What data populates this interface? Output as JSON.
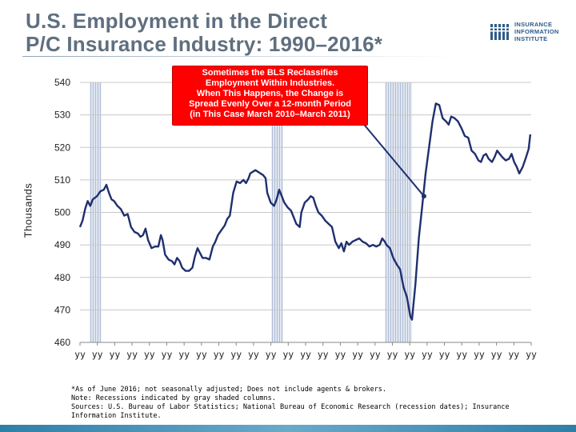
{
  "title_line1": "U.S. Employment in the Direct",
  "title_line2": "P/C Insurance Industry: 1990–2016*",
  "logo": {
    "line1": "INSURANCE",
    "line2": "INFORMATION",
    "line3": "INSTITUTE",
    "color": "#2f5b8a"
  },
  "callout": {
    "line1": "Sometimes the BLS Reclassifies",
    "line2": "Employment Within Industries.",
    "line3": "When This Happens, the Change is",
    "line4": "Spread Evenly Over a 12-month Period",
    "line5": "(in This Case March 2010–March 2011)",
    "color": "#ff0000"
  },
  "notes": {
    "line1": "*As of June 2016; not seasonally adjusted; Does not include agents & brokers.",
    "line2": "Note: Recessions indicated by gray shaded columns.",
    "line3": "Sources: U.S. Bureau of Labor Statistics; National Bureau of Economic Research (recession dates); Insurance Information Institute."
  },
  "chart_data": {
    "type": "line",
    "title": "",
    "xlabel": "",
    "ylabel": "Thousands",
    "ylim": [
      460,
      540
    ],
    "yticks": [
      460,
      470,
      480,
      490,
      500,
      510,
      520,
      530,
      540
    ],
    "xlim": [
      1990,
      2016.5
    ],
    "xtick_labels": [
      "yy",
      "yy",
      "yy",
      "yy",
      "yy",
      "yy",
      "yy",
      "yy",
      "yy",
      "yy",
      "yy",
      "yy",
      "yy",
      "yy",
      "yy",
      "yy",
      "yy",
      "yy",
      "yy",
      "yy",
      "yy",
      "yy",
      "yy",
      "yy",
      "yy",
      "yy",
      "yy"
    ],
    "grid": "horizontal",
    "line_color": "#1f2f6f",
    "recessions": [
      [
        1990.58,
        1991.25
      ],
      [
        2001.25,
        2001.92
      ],
      [
        2007.92,
        2009.5
      ]
    ],
    "callout_point": [
      2010.2,
      505
    ],
    "series": [
      {
        "name": "",
        "points": [
          [
            1990.0,
            495.5
          ],
          [
            1990.15,
            497.5
          ],
          [
            1990.3,
            501
          ],
          [
            1990.45,
            503.5
          ],
          [
            1990.6,
            502
          ],
          [
            1990.75,
            504
          ],
          [
            1991.0,
            505
          ],
          [
            1991.2,
            506.5
          ],
          [
            1991.4,
            507
          ],
          [
            1991.55,
            508.5
          ],
          [
            1991.7,
            506
          ],
          [
            1991.85,
            504
          ],
          [
            1992.0,
            503.5
          ],
          [
            1992.2,
            502
          ],
          [
            1992.4,
            501
          ],
          [
            1992.6,
            499
          ],
          [
            1992.8,
            499.5
          ],
          [
            1993.0,
            495.5
          ],
          [
            1993.2,
            494
          ],
          [
            1993.4,
            493.5
          ],
          [
            1993.55,
            492.5
          ],
          [
            1993.7,
            493
          ],
          [
            1993.85,
            495
          ],
          [
            1994.0,
            491.5
          ],
          [
            1994.2,
            489
          ],
          [
            1994.4,
            489.5
          ],
          [
            1994.6,
            489.5
          ],
          [
            1994.75,
            493
          ],
          [
            1994.85,
            491.5
          ],
          [
            1995.0,
            487
          ],
          [
            1995.2,
            485.5
          ],
          [
            1995.4,
            485
          ],
          [
            1995.55,
            484
          ],
          [
            1995.7,
            486
          ],
          [
            1995.85,
            485
          ],
          [
            1996.0,
            483
          ],
          [
            1996.2,
            482
          ],
          [
            1996.4,
            482
          ],
          [
            1996.6,
            483
          ],
          [
            1996.75,
            486.5
          ],
          [
            1996.9,
            489
          ],
          [
            1997.0,
            488
          ],
          [
            1997.2,
            486
          ],
          [
            1997.4,
            486
          ],
          [
            1997.6,
            485.5
          ],
          [
            1997.8,
            489.5
          ],
          [
            1997.95,
            491
          ],
          [
            1998.1,
            493
          ],
          [
            1998.3,
            494.5
          ],
          [
            1998.5,
            496
          ],
          [
            1998.65,
            498
          ],
          [
            1998.8,
            499
          ],
          [
            1999.0,
            506
          ],
          [
            1999.2,
            509.5
          ],
          [
            1999.4,
            509
          ],
          [
            1999.6,
            510
          ],
          [
            1999.75,
            509
          ],
          [
            1999.9,
            510.5
          ],
          [
            2000.0,
            512
          ],
          [
            2000.15,
            512.5
          ],
          [
            2000.3,
            513
          ],
          [
            2000.45,
            512.5
          ],
          [
            2000.6,
            512
          ],
          [
            2000.75,
            511.5
          ],
          [
            2000.9,
            510.5
          ],
          [
            2001.0,
            506
          ],
          [
            2001.2,
            503
          ],
          [
            2001.4,
            502
          ],
          [
            2001.55,
            504
          ],
          [
            2001.7,
            507
          ],
          [
            2001.85,
            505
          ],
          [
            2002.0,
            503
          ],
          [
            2002.2,
            501.5
          ],
          [
            2002.4,
            500.5
          ],
          [
            2002.55,
            498.5
          ],
          [
            2002.7,
            496.5
          ],
          [
            2002.9,
            495.5
          ],
          [
            2003.0,
            500
          ],
          [
            2003.2,
            503
          ],
          [
            2003.4,
            504
          ],
          [
            2003.55,
            505
          ],
          [
            2003.7,
            504.5
          ],
          [
            2003.85,
            502
          ],
          [
            2004.0,
            500
          ],
          [
            2004.2,
            499
          ],
          [
            2004.4,
            497.5
          ],
          [
            2004.6,
            496.5
          ],
          [
            2004.8,
            495.5
          ],
          [
            2005.0,
            491
          ],
          [
            2005.2,
            489
          ],
          [
            2005.35,
            490.5
          ],
          [
            2005.5,
            488
          ],
          [
            2005.65,
            491
          ],
          [
            2005.8,
            490
          ],
          [
            2006.0,
            491
          ],
          [
            2006.2,
            491.5
          ],
          [
            2006.4,
            492
          ],
          [
            2006.6,
            491
          ],
          [
            2006.8,
            490.5
          ],
          [
            2007.0,
            489.5
          ],
          [
            2007.2,
            490
          ],
          [
            2007.4,
            489.5
          ],
          [
            2007.6,
            490
          ],
          [
            2007.75,
            492
          ],
          [
            2007.9,
            491
          ],
          [
            2008.0,
            490
          ],
          [
            2008.2,
            489
          ],
          [
            2008.4,
            486
          ],
          [
            2008.6,
            484
          ],
          [
            2008.8,
            482.5
          ],
          [
            2009.0,
            477
          ],
          [
            2009.2,
            474
          ],
          [
            2009.4,
            468
          ],
          [
            2009.5,
            467
          ],
          [
            2009.7,
            478
          ],
          [
            2009.9,
            492
          ],
          [
            2010.1,
            502
          ],
          [
            2010.3,
            512
          ],
          [
            2010.5,
            520
          ],
          [
            2010.7,
            528
          ],
          [
            2010.9,
            533.5
          ],
          [
            2011.1,
            533
          ],
          [
            2011.3,
            529
          ],
          [
            2011.5,
            528
          ],
          [
            2011.65,
            527
          ],
          [
            2011.8,
            529.5
          ],
          [
            2012.0,
            529
          ],
          [
            2012.2,
            528
          ],
          [
            2012.4,
            526
          ],
          [
            2012.6,
            523.5
          ],
          [
            2012.8,
            523
          ],
          [
            2013.0,
            519
          ],
          [
            2013.2,
            518
          ],
          [
            2013.4,
            516
          ],
          [
            2013.55,
            515.5
          ],
          [
            2013.7,
            517.5
          ],
          [
            2013.85,
            518
          ],
          [
            2014.0,
            516.5
          ],
          [
            2014.2,
            515.5
          ],
          [
            2014.35,
            517
          ],
          [
            2014.5,
            519
          ],
          [
            2014.65,
            518
          ],
          [
            2014.8,
            517
          ],
          [
            2015.0,
            516
          ],
          [
            2015.2,
            516.5
          ],
          [
            2015.35,
            518
          ],
          [
            2015.5,
            515.5
          ],
          [
            2015.65,
            514
          ],
          [
            2015.8,
            512
          ],
          [
            2016.0,
            514
          ],
          [
            2016.2,
            517
          ],
          [
            2016.35,
            519.5
          ],
          [
            2016.45,
            524
          ]
        ]
      }
    ]
  }
}
